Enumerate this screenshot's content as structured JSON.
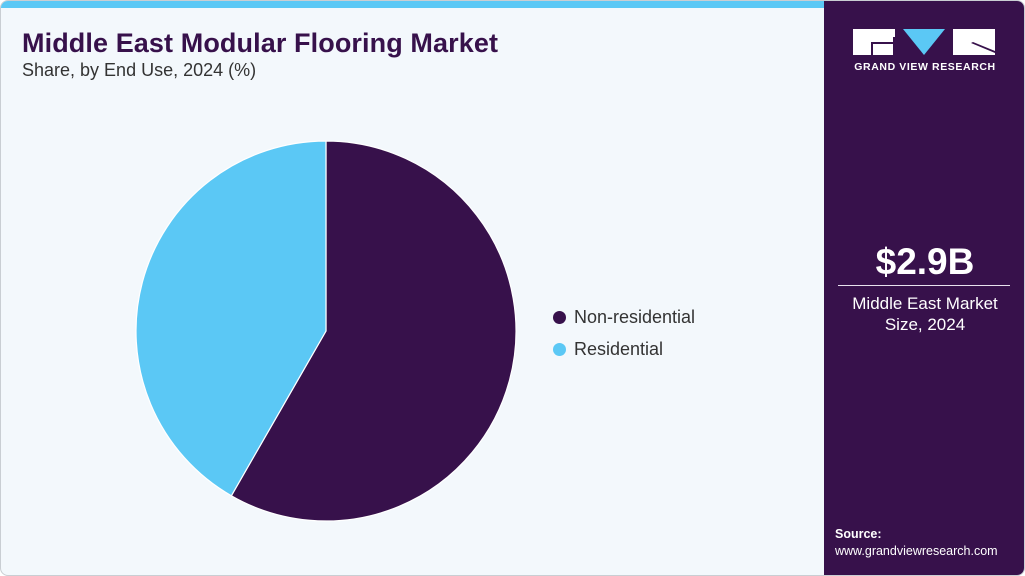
{
  "header": {
    "title": "Middle East Modular Flooring Market",
    "subtitle": "Share, by End Use, 2024 (%)"
  },
  "colors": {
    "primary": "#37114b",
    "accent": "#5bc8f5",
    "background": "#f3f8fc"
  },
  "legend": {
    "items": [
      {
        "label": "Non-residential",
        "color": "#37114b"
      },
      {
        "label": "Residential",
        "color": "#5bc8f5"
      }
    ]
  },
  "sidebar": {
    "brand": "GRAND VIEW RESEARCH",
    "market_size_value": "$2.9B",
    "market_size_label_line1": "Middle East Market",
    "market_size_label_line2": "Size, 2024",
    "source_label": "Source:",
    "source_url": "www.grandviewresearch.com"
  },
  "chart_data": {
    "type": "pie",
    "title": "Middle East Modular Flooring Market",
    "subtitle": "Share, by End Use, 2024 (%)",
    "categories": [
      "Non-residential",
      "Residential"
    ],
    "values": [
      58.3,
      41.7
    ],
    "colors": [
      "#37114b",
      "#5bc8f5"
    ],
    "start_angle": "12 o'clock, clockwise",
    "legend_position": "right",
    "data_labels": false
  }
}
